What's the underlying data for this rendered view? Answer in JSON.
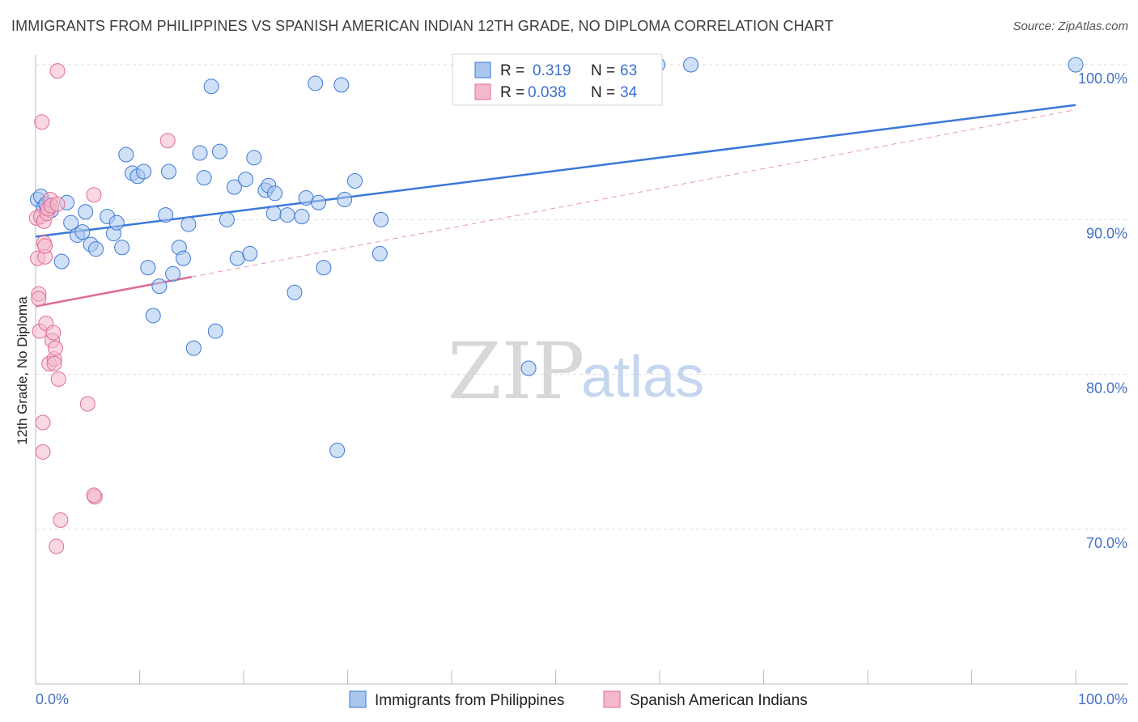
{
  "title": "IMMIGRANTS FROM PHILIPPINES VS SPANISH AMERICAN INDIAN 12TH GRADE, NO DIPLOMA CORRELATION CHART",
  "source": "Source: ZipAtlas.com",
  "watermark": {
    "zip": "ZIP",
    "atlas": "atlas"
  },
  "colors": {
    "blue": "#3a78d8",
    "blue_fill": "#a9c6ef",
    "pink": "#e06b94",
    "pink_fill": "#f4b8cb",
    "grid": "#dddddd",
    "tick_label": "#4472c4"
  },
  "legend": {
    "rows": [
      {
        "r_label": "R =",
        "r_value": "0.319",
        "n_label": "N =",
        "n_value": "63",
        "series": "blue"
      },
      {
        "r_label": "R =",
        "r_value": "0.038",
        "n_label": "N =",
        "n_value": "34",
        "series": "pink"
      }
    ]
  },
  "chart_data": {
    "type": "scatter",
    "title": "IMMIGRANTS FROM PHILIPPINES VS SPANISH AMERICAN INDIAN 12TH GRADE, NO DIPLOMA CORRELATION CHART",
    "xlabel": "",
    "ylabel": "12th Grade, No Diploma",
    "xlim": [
      0,
      100
    ],
    "ylim": [
      60,
      101
    ],
    "x_tick_labels": {
      "left": "0.0%",
      "right": "100.0%"
    },
    "y_ticks": [
      {
        "value": 100,
        "label": "100.0%"
      },
      {
        "value": 90,
        "label": "90.0%"
      },
      {
        "value": 80,
        "label": "80.0%"
      },
      {
        "value": 70,
        "label": "70.0%"
      }
    ],
    "series": [
      {
        "name": "Immigrants from Philippines",
        "color": "blue",
        "trend": {
          "x0": 0,
          "y0": 88.9,
          "x1": 100,
          "y1": 97.4,
          "style": "solid"
        },
        "points": [
          [
            0.2,
            91.3
          ],
          [
            0.5,
            91.5
          ],
          [
            0.8,
            90.8
          ],
          [
            1.0,
            91.0
          ],
          [
            1.5,
            90.6
          ],
          [
            3.0,
            91.1
          ],
          [
            2.5,
            87.3
          ],
          [
            3.4,
            89.8
          ],
          [
            4.0,
            89.0
          ],
          [
            4.5,
            89.2
          ],
          [
            4.8,
            90.5
          ],
          [
            5.3,
            88.4
          ],
          [
            5.8,
            88.1
          ],
          [
            6.9,
            90.2
          ],
          [
            7.5,
            89.1
          ],
          [
            7.8,
            89.8
          ],
          [
            8.3,
            88.2
          ],
          [
            8.7,
            94.2
          ],
          [
            9.3,
            93.0
          ],
          [
            9.8,
            92.8
          ],
          [
            10.4,
            93.1
          ],
          [
            10.8,
            86.9
          ],
          [
            11.3,
            83.8
          ],
          [
            11.9,
            85.7
          ],
          [
            12.5,
            90.3
          ],
          [
            12.8,
            93.1
          ],
          [
            13.2,
            86.5
          ],
          [
            13.8,
            88.2
          ],
          [
            14.2,
            87.5
          ],
          [
            14.7,
            89.7
          ],
          [
            15.2,
            81.7
          ],
          [
            15.8,
            94.3
          ],
          [
            16.2,
            92.7
          ],
          [
            16.9,
            98.6
          ],
          [
            17.3,
            82.8
          ],
          [
            17.7,
            94.4
          ],
          [
            18.4,
            90.0
          ],
          [
            19.1,
            92.1
          ],
          [
            19.4,
            87.5
          ],
          [
            20.2,
            92.6
          ],
          [
            20.6,
            87.8
          ],
          [
            21.0,
            94.0
          ],
          [
            22.1,
            91.9
          ],
          [
            22.4,
            92.2
          ],
          [
            23.0,
            91.7
          ],
          [
            22.9,
            90.4
          ],
          [
            24.2,
            90.3
          ],
          [
            24.9,
            85.3
          ],
          [
            25.6,
            90.2
          ],
          [
            26.0,
            91.4
          ],
          [
            26.9,
            98.8
          ],
          [
            27.2,
            91.1
          ],
          [
            27.7,
            86.9
          ],
          [
            29.0,
            75.1
          ],
          [
            29.4,
            98.7
          ],
          [
            29.7,
            91.3
          ],
          [
            30.7,
            92.5
          ],
          [
            33.2,
            90.0
          ],
          [
            33.1,
            87.8
          ],
          [
            47.4,
            80.4
          ],
          [
            59.8,
            100.0
          ],
          [
            63.0,
            100.0
          ],
          [
            100.0,
            100.0
          ]
        ]
      },
      {
        "name": "Spanish American Indians",
        "color": "pink",
        "trend": {
          "x0": 0,
          "y0": 84.4,
          "x1": 15,
          "y1": 86.3,
          "style": "solid",
          "extended_to": {
            "x": 100,
            "y": 97.1,
            "style": "dashed"
          }
        },
        "points": [
          [
            0.1,
            90.1
          ],
          [
            0.2,
            87.5
          ],
          [
            0.3,
            85.2
          ],
          [
            0.3,
            84.9
          ],
          [
            0.4,
            82.8
          ],
          [
            0.5,
            90.2
          ],
          [
            0.6,
            96.3
          ],
          [
            0.7,
            76.9
          ],
          [
            0.7,
            75.0
          ],
          [
            0.8,
            89.9
          ],
          [
            0.8,
            88.5
          ],
          [
            0.9,
            87.6
          ],
          [
            0.9,
            88.3
          ],
          [
            1.0,
            83.3
          ],
          [
            1.1,
            90.4
          ],
          [
            1.2,
            90.7
          ],
          [
            1.3,
            80.7
          ],
          [
            1.4,
            91.3
          ],
          [
            1.5,
            90.9
          ],
          [
            1.6,
            82.2
          ],
          [
            1.7,
            82.7
          ],
          [
            1.8,
            81.0
          ],
          [
            1.8,
            80.7
          ],
          [
            1.9,
            81.7
          ],
          [
            2.1,
            91.0
          ],
          [
            2.2,
            79.7
          ],
          [
            2.1,
            99.6
          ],
          [
            2.0,
            68.9
          ],
          [
            2.4,
            70.6
          ],
          [
            5.0,
            78.1
          ],
          [
            5.7,
            72.1
          ],
          [
            5.6,
            72.2
          ],
          [
            5.6,
            91.6
          ],
          [
            12.7,
            95.1
          ]
        ]
      }
    ]
  },
  "bottom_legend": [
    {
      "label": "Immigrants from Philippines",
      "series": "blue"
    },
    {
      "label": "Spanish American Indians",
      "series": "pink"
    }
  ]
}
